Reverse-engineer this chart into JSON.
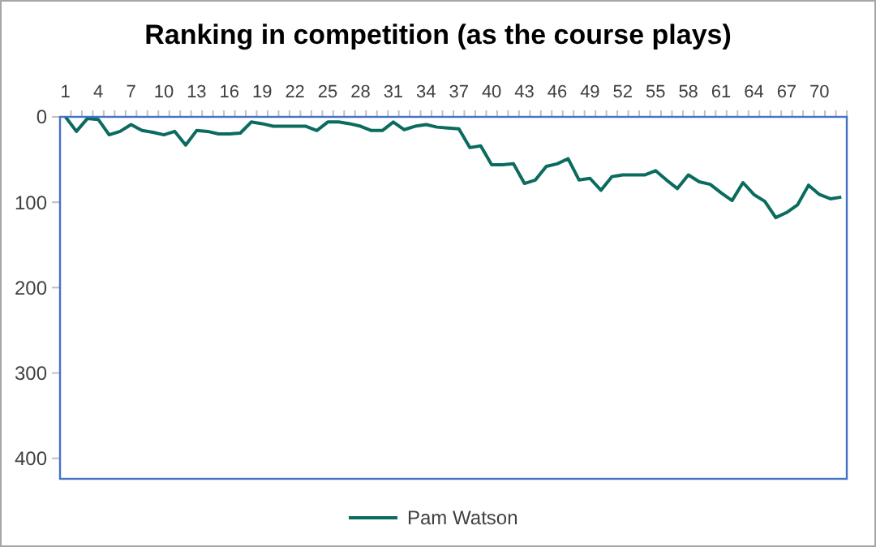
{
  "chart_data": {
    "type": "line",
    "title": "Ranking in competition (as the course plays)",
    "categories": [
      "1",
      null,
      null,
      "4",
      null,
      null,
      "7",
      null,
      null,
      "10",
      null,
      null,
      "13",
      null,
      null,
      "16",
      null,
      null,
      "19",
      null,
      null,
      "22",
      null,
      null,
      "25",
      null,
      null,
      "28",
      null,
      null,
      "31",
      null,
      null,
      "34",
      null,
      null,
      "37",
      null,
      null,
      "40",
      null,
      null,
      "43",
      null,
      null,
      "46",
      null,
      null,
      "49",
      null,
      null,
      "52",
      null,
      null,
      "55",
      null,
      null,
      "58",
      null,
      null,
      "61",
      null,
      null,
      "64",
      null,
      null,
      "67",
      null,
      null,
      "70",
      null,
      null
    ],
    "series": [
      {
        "name": "Pam Watson",
        "color": "#0b6b5e",
        "values": [
          0,
          17,
          2,
          3,
          21,
          17,
          9,
          16,
          18,
          21,
          17,
          33,
          16,
          17,
          20,
          20,
          19,
          6,
          8,
          11,
          11,
          11,
          11,
          16,
          6,
          6,
          8,
          11,
          16,
          16,
          6,
          15,
          11,
          9,
          12,
          13,
          14,
          36,
          34,
          56,
          56,
          55,
          78,
          74,
          58,
          55,
          49,
          74,
          72,
          86,
          70,
          68,
          68,
          68,
          63,
          74,
          84,
          68,
          76,
          79,
          89,
          98,
          77,
          91,
          99,
          118,
          112,
          103,
          80,
          91,
          96,
          94
        ]
      }
    ],
    "ylim": [
      424,
      0
    ],
    "yticks": [
      0,
      100,
      200,
      300,
      400
    ],
    "grid": false,
    "legend": "bottom",
    "marker": "none",
    "line_style": "solid"
  }
}
